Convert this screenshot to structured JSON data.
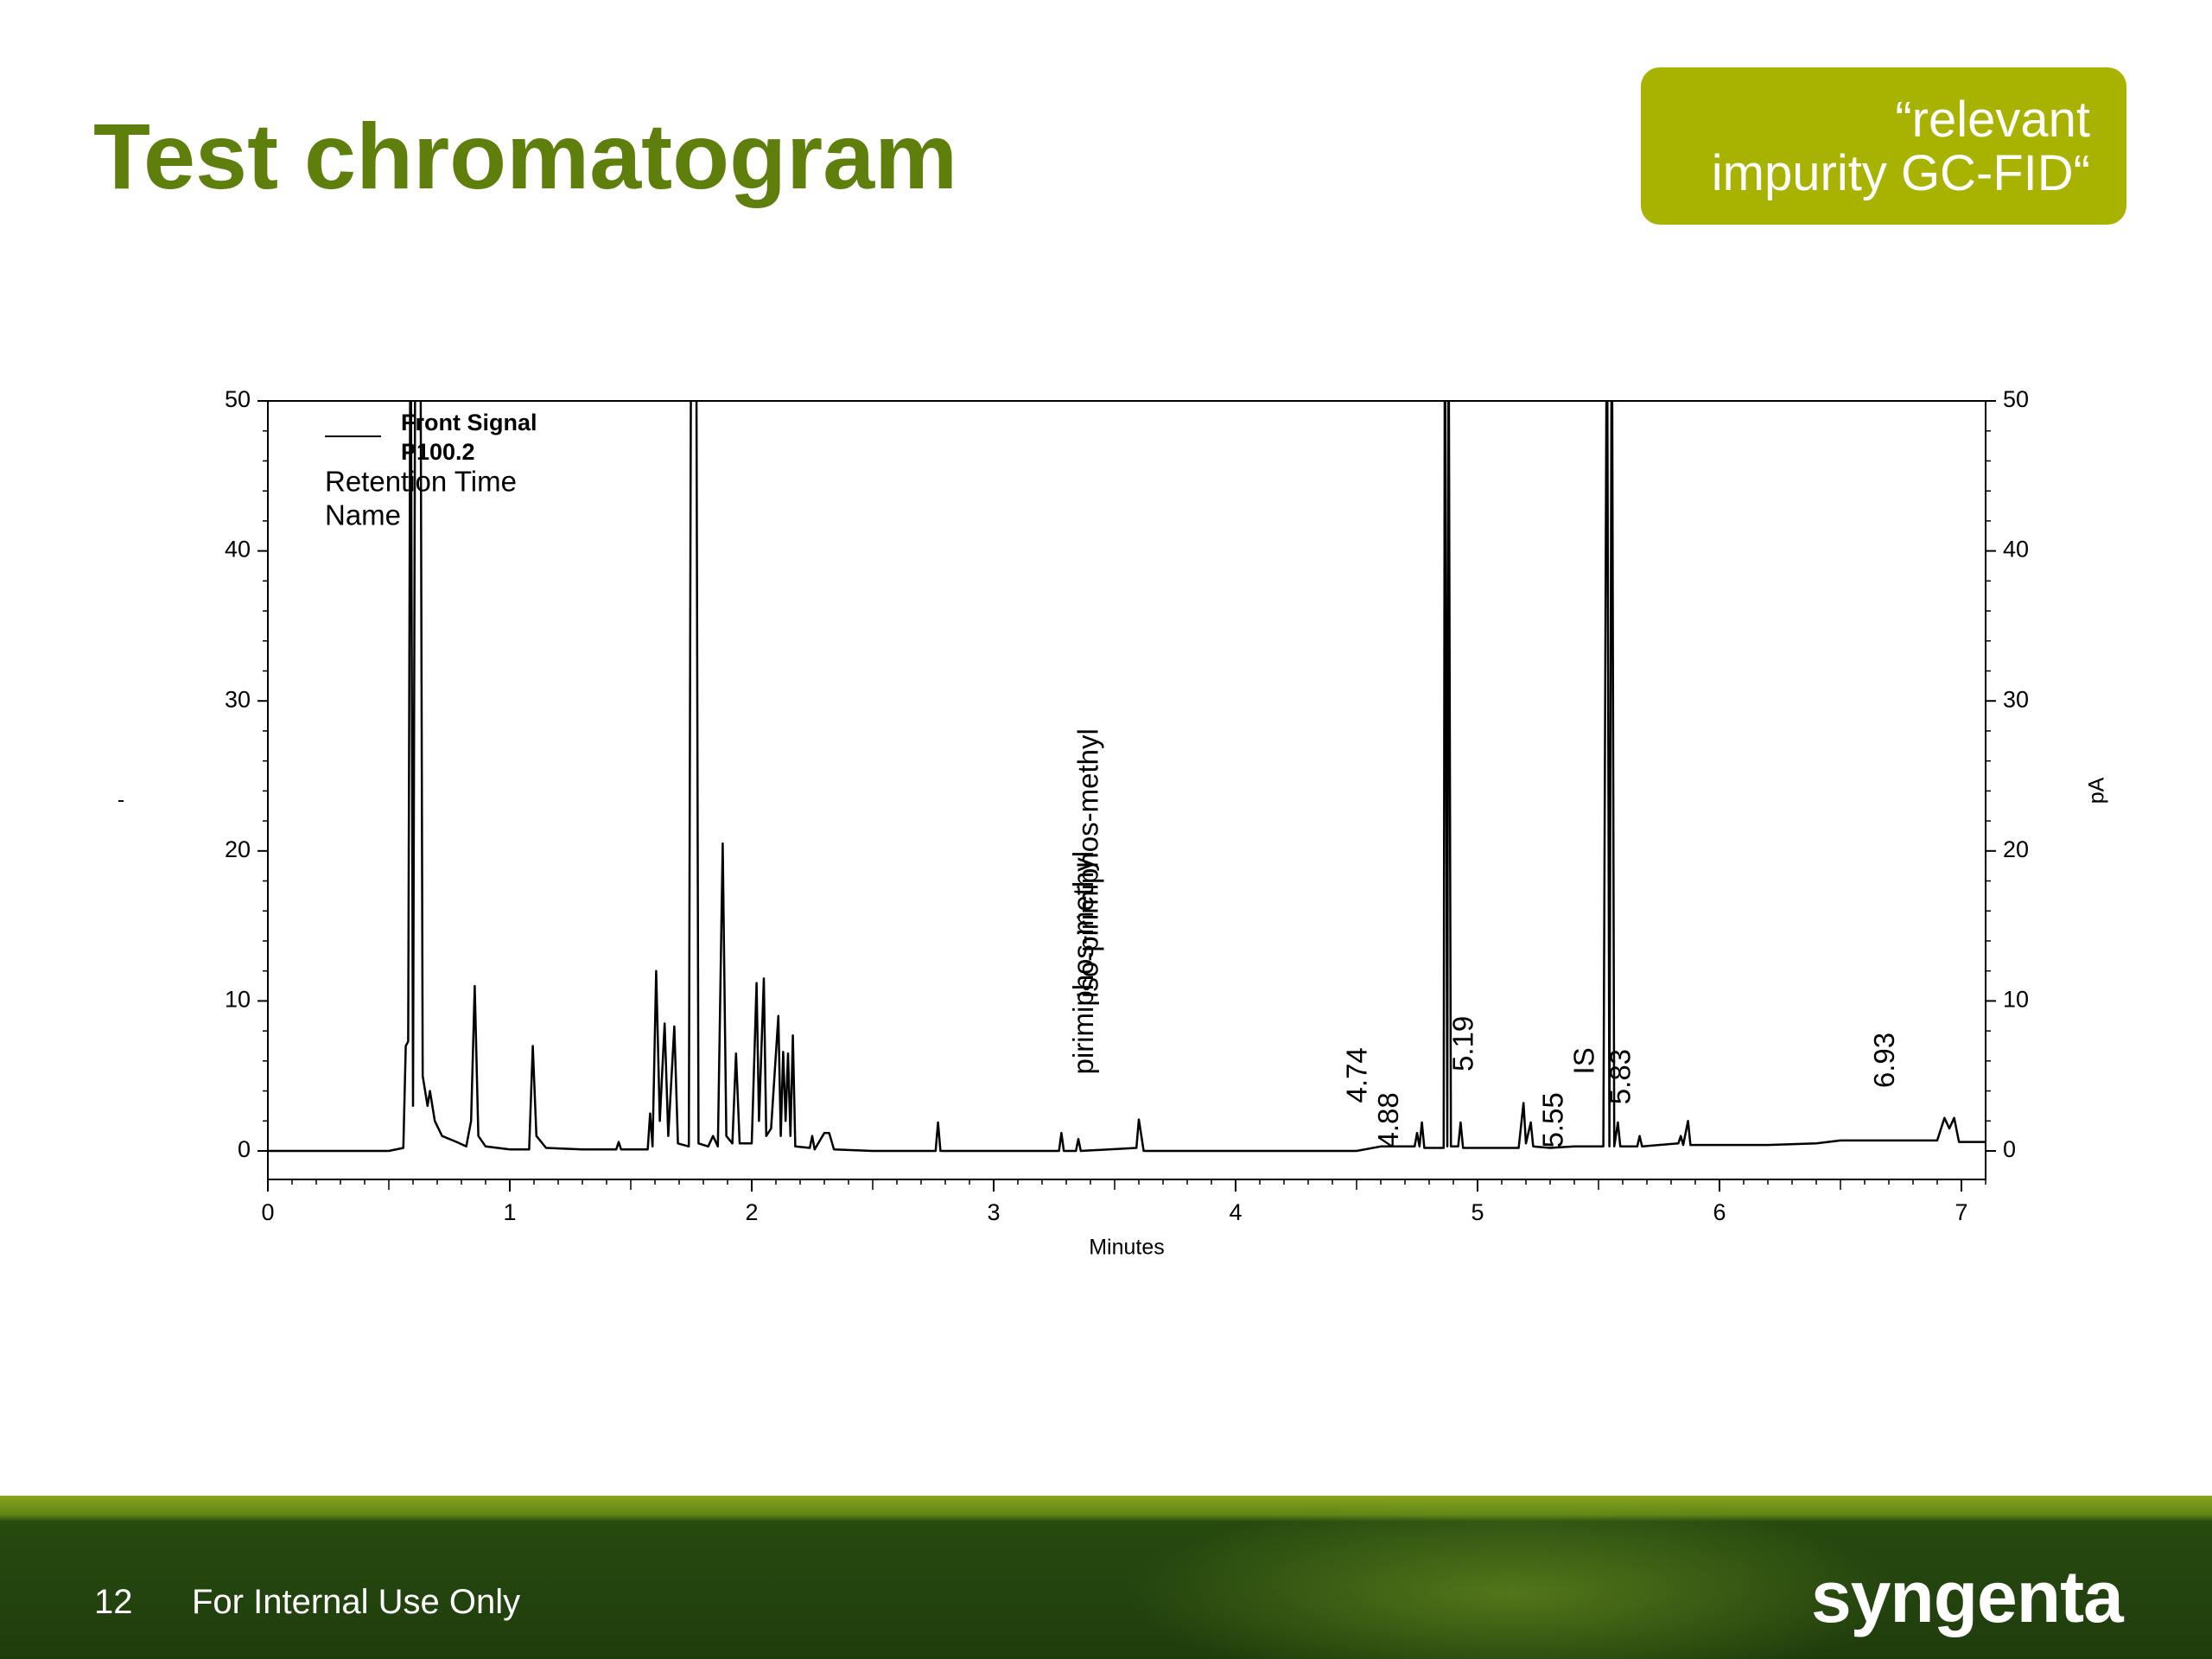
{
  "header": {
    "title": "Test chromatogram",
    "badge": "“relevant impurity GC-FID“"
  },
  "footer": {
    "page": "12",
    "note": "For Internal Use Only",
    "logo": "syngenta"
  },
  "chart_data": {
    "type": "line",
    "x_label": "Minutes",
    "y_label": "-",
    "y2_label": "pA",
    "legend_extra": [
      "Retention Time",
      "Name"
    ],
    "xlim": [
      0,
      7.1
    ],
    "xticks": [
      0,
      1,
      2,
      3,
      4,
      5,
      6,
      7
    ],
    "ylim": [
      -1.9,
      50
    ],
    "yticks": [
      0,
      10,
      20,
      30,
      40,
      50
    ],
    "y2lim": [
      -1.9,
      50
    ],
    "y2ticks": [
      0,
      10,
      20,
      30,
      40,
      50
    ],
    "series": [
      {
        "name": "Front Signal P100.2",
        "color": "#000000",
        "x": [
          0,
          0.5,
          0.56,
          0.57,
          0.58,
          0.59,
          0.6,
          0.61,
          0.63,
          0.64,
          0.66,
          0.67,
          0.69,
          0.72,
          0.78,
          0.82,
          0.84,
          0.855,
          0.87,
          0.9,
          1.0,
          1.08,
          1.095,
          1.11,
          1.15,
          1.3,
          1.44,
          1.45,
          1.46,
          1.57,
          1.58,
          1.59,
          1.605,
          1.62,
          1.64,
          1.655,
          1.68,
          1.695,
          1.74,
          1.75,
          1.77,
          1.78,
          1.82,
          1.84,
          1.86,
          1.88,
          1.895,
          1.92,
          1.935,
          1.95,
          2.0,
          2.02,
          2.03,
          2.05,
          2.06,
          2.08,
          2.11,
          2.12,
          2.13,
          2.14,
          2.15,
          2.16,
          2.17,
          2.18,
          2.24,
          2.25,
          2.26,
          2.3,
          2.32,
          2.34,
          2.5,
          2.76,
          2.77,
          2.78,
          3.27,
          3.28,
          3.29,
          3.34,
          3.35,
          3.36,
          3.59,
          3.6,
          3.62,
          4.5,
          4.6,
          4.74,
          4.75,
          4.76,
          4.77,
          4.78,
          4.86,
          4.865,
          4.875,
          4.88,
          4.89,
          4.92,
          4.93,
          4.94,
          5.17,
          5.19,
          5.2,
          5.22,
          5.23,
          5.3,
          5.4,
          5.52,
          5.535,
          5.545,
          5.555,
          5.565,
          5.58,
          5.59,
          5.66,
          5.67,
          5.68,
          5.83,
          5.84,
          5.85,
          5.87,
          5.88,
          6.2,
          6.4,
          6.5,
          6.9,
          6.93,
          6.95,
          6.97,
          6.99,
          7.1
        ],
        "values": [
          0,
          0,
          0.2,
          7,
          7.3,
          60,
          3,
          60,
          60,
          5,
          3,
          4,
          2,
          1,
          0.6,
          0.3,
          2,
          11,
          1,
          0.3,
          0.1,
          0.1,
          7,
          1,
          0.2,
          0.1,
          0.1,
          0.6,
          0.1,
          0.1,
          2.5,
          0.3,
          12,
          2,
          8.5,
          1,
          8.3,
          0.5,
          0.3,
          60,
          60,
          0.5,
          0.3,
          1,
          0.3,
          20.5,
          1,
          0.5,
          6.5,
          0.5,
          0.5,
          11.2,
          2,
          11.5,
          1,
          1.5,
          9,
          1,
          6.6,
          2,
          6.5,
          1,
          7.7,
          0.3,
          0.2,
          1,
          0.1,
          1.2,
          1.2,
          0.1,
          0,
          0,
          1.9,
          0,
          0,
          1.2,
          0,
          0,
          0.8,
          0,
          0.2,
          2.1,
          0,
          0,
          0.3,
          0.3,
          1.2,
          0.3,
          1.9,
          0.2,
          0.2,
          60,
          0.3,
          60,
          0.3,
          0.3,
          1.9,
          0.2,
          0.2,
          3.2,
          0.5,
          1.9,
          0.3,
          0.2,
          0.3,
          0.3,
          60,
          0.3,
          60,
          0.3,
          1.9,
          0.3,
          0.3,
          1,
          0.3,
          0.5,
          1,
          0.4,
          2,
          0.4,
          0.4,
          0.5,
          0.7,
          0.7,
          2.2,
          1.5,
          2.2,
          0.6,
          0.6
        ]
      }
    ],
    "annotations": [
      {
        "text": "iso-pirimiphos-methyl",
        "x": 3.4,
        "y": 10.2
      },
      {
        "text": "pirimiphos-methyl",
        "x": 3.38,
        "y": 5.1
      },
      {
        "text": "4.74",
        "x": 4.51,
        "y": 3.2
      },
      {
        "text": "4.88",
        "x": 4.64,
        "y": 0.2
      },
      {
        "text": "5.19",
        "x": 4.95,
        "y": 5.3
      },
      {
        "text": "5.55",
        "x": 5.32,
        "y": 0.2
      },
      {
        "text": "IS",
        "x": 5.45,
        "y": 5.1
      },
      {
        "text": "5.83",
        "x": 5.6,
        "y": 3.1
      },
      {
        "text": "6.93",
        "x": 6.69,
        "y": 4.2
      }
    ]
  }
}
